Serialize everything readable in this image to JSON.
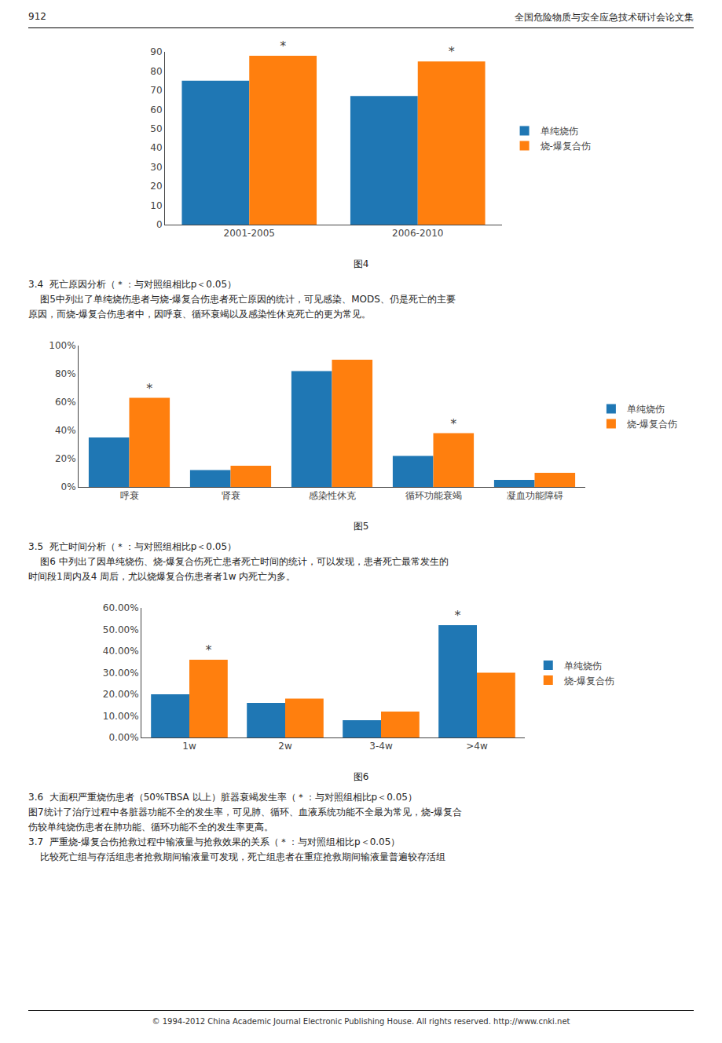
{
  "annotations": [
    "912",
    "全国危险物质与安全应急技术研讨会论文集",
    "© 1994-2012 China Academic Journal Electronic Publishing House. All rights reserved.    http://www.cnki.net"
  ],
  "chart_data": [
    {
      "type": "bar",
      "title": "图4",
      "categories": [
        "2001-2005",
        "2006-2010"
      ],
      "series": [
        {
          "name": "单纯烧伤",
          "values": [
            75,
            67
          ]
        },
        {
          "name": "烧-爆复合伤",
          "values": [
            88,
            85
          ]
        }
      ],
      "ylim": [
        0,
        90
      ],
      "yticks": [
        0,
        10,
        20,
        30,
        40,
        50,
        60,
        70,
        80,
        90
      ],
      "grid": false,
      "legend": "right",
      "annotations": [
        {
          "text": "*",
          "category": "2001-2005",
          "series": "烧-爆复合伤"
        },
        {
          "text": "*",
          "category": "2006-2010",
          "series": "烧-爆复合伤"
        },
        "3.4  死亡原因分析（＊：与对照组相比p＜0.05）",
        "    图5中列出了单纯烧伤患者与烧-爆复合伤患者死亡原因的统计，可见感染、MODS、仍是死亡的主要",
        "原因，而烧-爆复合伤患者中，因呼衰、循环衰竭以及感染性休克死亡的更为常见。"
      ]
    },
    {
      "type": "bar",
      "title": "图5",
      "categories": [
        "呼衰",
        "肾衰",
        "感染性休克",
        "循环功能衰竭",
        "凝血功能障碍"
      ],
      "series": [
        {
          "name": "单纯烧伤",
          "values": [
            35,
            12,
            82,
            22,
            5
          ]
        },
        {
          "name": "烧-爆复合伤",
          "values": [
            63,
            15,
            90,
            38,
            10
          ]
        }
      ],
      "ylim": [
        0,
        100
      ],
      "yticks": [
        {
          "value": 0,
          "label": "0%"
        },
        {
          "value": 20,
          "label": "20%"
        },
        {
          "value": 40,
          "label": "40%"
        },
        {
          "value": 60,
          "label": "60%"
        },
        {
          "value": 80,
          "label": "80%"
        },
        {
          "value": 100,
          "label": "100%"
        }
      ],
      "grid": false,
      "legend": "right",
      "annotations": [
        {
          "text": "*",
          "category": "呼衰",
          "series": "烧-爆复合伤"
        },
        {
          "text": "*",
          "category": "循环功能衰竭",
          "series": "烧-爆复合伤"
        },
        "3.5  死亡时间分析（＊：与对照组相比p＜0.05）",
        "    图6 中列出了因单纯烧伤、烧-爆复合伤死亡患者死亡时间的统计，可以发现，患者死亡最常发生的",
        "时间段1周内及4 周后，尤以烧爆复合伤患者者1w 内死亡为多。"
      ]
    },
    {
      "type": "bar",
      "title": "图6",
      "categories": [
        "1w",
        "2w",
        "3-4w",
        ">4w"
      ],
      "series": [
        {
          "name": "单纯烧伤",
          "values": [
            20,
            16,
            8,
            52
          ]
        },
        {
          "name": "烧-爆复合伤",
          "values": [
            36,
            18,
            12,
            30
          ]
        }
      ],
      "ylim": [
        0,
        60
      ],
      "yticks": [
        {
          "value": 0,
          "label": "0.00%"
        },
        {
          "value": 10,
          "label": "10.00%"
        },
        {
          "value": 20,
          "label": "20.00%"
        },
        {
          "value": 30,
          "label": "30.00%"
        },
        {
          "value": 40,
          "label": "40.00%"
        },
        {
          "value": 50,
          "label": "50.00%"
        },
        {
          "value": 60,
          "label": "60.00%"
        }
      ],
      "grid": false,
      "legend": "right",
      "annotations": [
        {
          "text": "*",
          "category": "1w",
          "series": "烧-爆复合伤"
        },
        {
          "text": "*",
          "category": ">4w",
          "series": "单纯烧伤"
        },
        "3.6  大面积严重烧伤患者（50%TBSA 以上）脏器衰竭发生率（＊：与对照组相比p＜0.05）",
        "图7统计了治疗过程中各脏器功能不全的发生率，可见肺、循环、血液系统功能不全最为常见，烧-爆复合",
        "伤较单纯烧伤患者在肺功能、循环功能不全的发生率更高。",
        "3.7  严重烧-爆复合伤抢救过程中输液量与抢救效果的关系（＊：与对照组相比p＜0.05）",
        "    比较死亡组与存活组患者抢救期间输液量可发现，死亡组患者在重症抢救期间输液量普遍较存活组"
      ]
    }
  ]
}
